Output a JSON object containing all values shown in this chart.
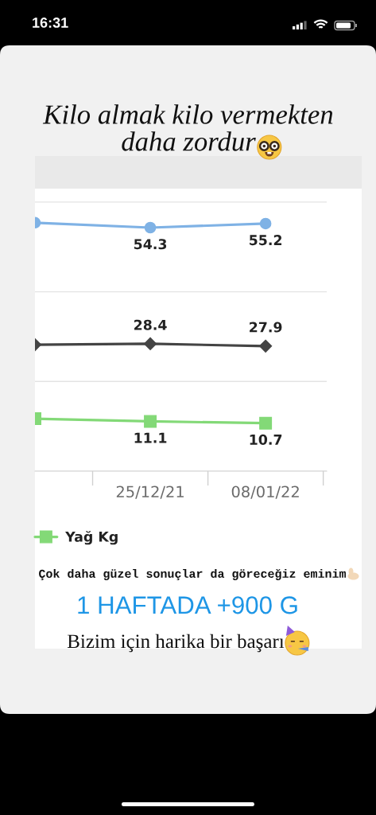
{
  "chart_data": {
    "type": "line",
    "title": "Kilo almak kilo vermekten\ndaha zordur",
    "categories": [
      null,
      "25/12/21",
      "08/01/22"
    ],
    "series": [
      {
        "color": "#7fb2e5",
        "marker": "circle",
        "values": [
          55.4,
          54.3,
          55.2
        ],
        "value_labels": [
          null,
          "54.3",
          "55.2"
        ]
      },
      {
        "color": "#444444",
        "marker": "diamond",
        "values": [
          28.2,
          28.4,
          27.9
        ],
        "value_labels": [
          null,
          "28.4",
          "27.9"
        ]
      },
      {
        "name": "Yağ Kg",
        "color": "#83d977",
        "marker": "square",
        "values": [
          11.7,
          11.1,
          10.7
        ],
        "value_labels": [
          null,
          "11.1",
          "10.7"
        ]
      }
    ],
    "line_style": "solid",
    "ylim": [
      0,
      63
    ],
    "yticks": [
      {
        "value": 0,
        "label": null
      },
      {
        "value": 20,
        "label": null
      },
      {
        "value": 40,
        "label": null
      },
      {
        "value": 60,
        "label": null
      }
    ],
    "grid": "y",
    "legend": "bottom",
    "tick_labels": "x",
    "annotations": [
      "16:31",
      "Çok daha güzel sonuçlar da göreceğiz eminim",
      "1 HAFTADA +900 G",
      "Bizim için harika bir başarı"
    ]
  }
}
